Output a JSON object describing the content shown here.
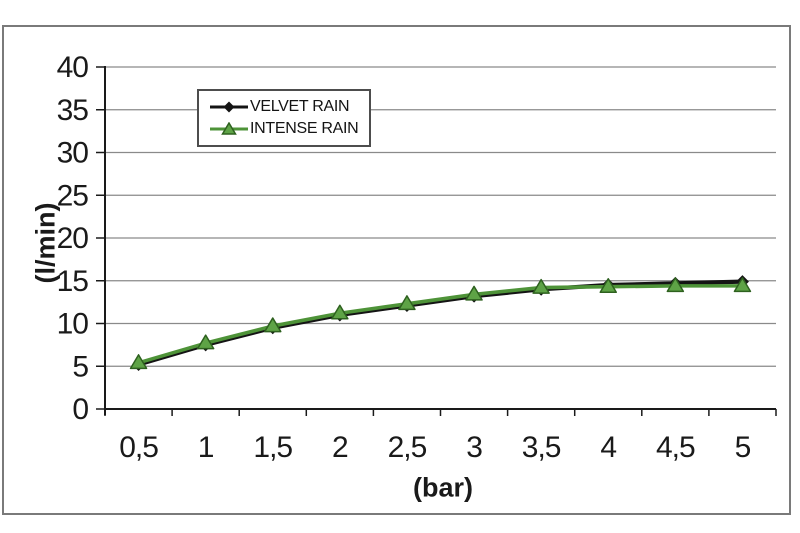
{
  "window": {
    "background": "#ffffff",
    "frame_border_color": "#7a7a7a"
  },
  "colors": {
    "gridline": "#8a8a8a",
    "axis": "#1a1a1a",
    "text": "#1a1a1a",
    "legend_border": "#4d4d4d",
    "legend_background": "#ffffff"
  },
  "chart_data": {
    "type": "line",
    "xlabel": "(bar)",
    "ylabel": "(l/min)",
    "categories": [
      "0,5",
      "1",
      "1,5",
      "2",
      "2,5",
      "3",
      "3,5",
      "4",
      "4,5",
      "5"
    ],
    "x_values": [
      0.5,
      1,
      1.5,
      2,
      2.5,
      3,
      3.5,
      4,
      4.5,
      5
    ],
    "ylim": [
      0,
      40
    ],
    "ytick_step": 5,
    "yticks": [
      "0",
      "5",
      "10",
      "15",
      "20",
      "25",
      "30",
      "35",
      "40"
    ],
    "grid": true,
    "legend_position": "top-left-inside",
    "series": [
      {
        "name": "VELVET RAIN",
        "color": "#141414",
        "marker": "diamond",
        "values": [
          5.2,
          7.5,
          9.5,
          11.0,
          12.1,
          13.2,
          14.0,
          14.5,
          14.7,
          14.9
        ]
      },
      {
        "name": "INTENSE RAIN",
        "color": "#4E9338",
        "marker": "triangle",
        "marker_fill": "#5EA346",
        "marker_stroke": "#2E611F",
        "values": [
          5.4,
          7.7,
          9.7,
          11.2,
          12.3,
          13.4,
          14.2,
          14.3,
          14.4,
          14.4
        ]
      }
    ]
  }
}
